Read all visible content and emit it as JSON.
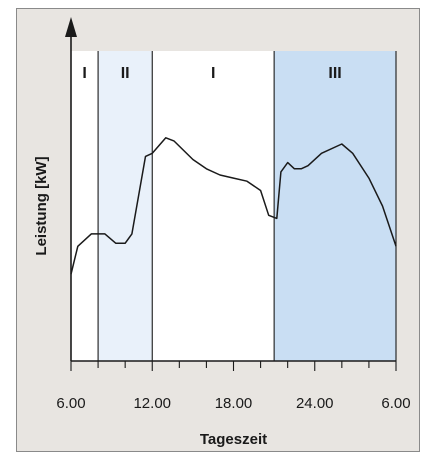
{
  "chart_data": {
    "type": "line",
    "title": "",
    "xlabel": "Tageszeit",
    "ylabel": "Leistung [kW]",
    "x_ticks": [
      "6.00",
      "12.00",
      "18.00",
      "24.00",
      "6.00"
    ],
    "xlim": [
      6,
      30
    ],
    "ylim": [
      0,
      100
    ],
    "grid": false,
    "legend": "none",
    "regions": [
      {
        "label": "I",
        "start": 6,
        "end": 8,
        "color": "#ffffff"
      },
      {
        "label": "II",
        "start": 8,
        "end": 12,
        "color": "#e9f1fa"
      },
      {
        "label": "I",
        "start": 12,
        "end": 21,
        "color": "#ffffff"
      },
      {
        "label": "III",
        "start": 21,
        "end": 30,
        "color": "#c9def3"
      }
    ],
    "series": [
      {
        "x": [
          6,
          6.5,
          7.5,
          8.5,
          9.3,
          10,
          10.5,
          11.5,
          12,
          13,
          13.6,
          15,
          16,
          17,
          18,
          19,
          20,
          20.6,
          21.2,
          21.5,
          22,
          22.5,
          23,
          23.5,
          24.5,
          26,
          26.8,
          28,
          29,
          30
        ],
        "y": [
          28,
          37,
          41,
          41,
          38,
          38,
          41,
          66,
          67,
          72,
          71,
          65,
          62,
          60,
          59,
          58,
          55,
          47,
          46,
          61,
          64,
          62,
          62,
          63,
          67,
          70,
          67,
          59,
          50,
          37
        ]
      }
    ]
  },
  "colors": {
    "panel_background": "#e8e5e1",
    "plot_white": "#ffffff",
    "region_light_blue": "#e9f1fa",
    "region_blue": "#c9def3",
    "line": "#1a1a1a"
  }
}
